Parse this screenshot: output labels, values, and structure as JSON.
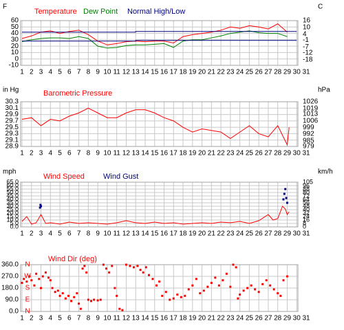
{
  "chart_data": [
    {
      "type": "line",
      "unit_left": "F",
      "unit_right": "C",
      "xlim": [
        1,
        31
      ],
      "xticks": [
        1,
        2,
        3,
        4,
        5,
        6,
        7,
        8,
        9,
        10,
        11,
        12,
        13,
        14,
        15,
        16,
        17,
        18,
        19,
        20,
        21,
        22,
        23,
        24,
        25,
        26,
        27,
        28,
        29,
        30,
        31
      ],
      "ylim": [
        -10,
        60
      ],
      "yticks": [
        60,
        50,
        40,
        30,
        20,
        10,
        0,
        -10
      ],
      "y2lim": [
        -23,
        16
      ],
      "y2ticks": [
        16,
        10,
        4,
        -1,
        -7,
        -12,
        -18
      ],
      "grid": true,
      "series": [
        {
          "name": "Temperature",
          "color": "#ff0000",
          "x": [
            1,
            2,
            3,
            4,
            5,
            6,
            7,
            8,
            9,
            10,
            11,
            12,
            13,
            14,
            15,
            16,
            17,
            18,
            19,
            20,
            21,
            22,
            23,
            24,
            25,
            26,
            27,
            28,
            29
          ],
          "values": [
            32,
            36,
            42,
            44,
            40,
            43,
            45,
            38,
            28,
            22,
            24,
            27,
            28,
            27,
            28,
            28,
            25,
            35,
            38,
            40,
            42,
            45,
            50,
            48,
            52,
            50,
            47,
            55,
            42
          ]
        },
        {
          "name": "Dew Point",
          "color": "#008000",
          "x": [
            1,
            2,
            3,
            4,
            5,
            6,
            7,
            8,
            9,
            10,
            11,
            12,
            13,
            14,
            15,
            16,
            17,
            18,
            19,
            20,
            21,
            22,
            23,
            24,
            25,
            26,
            27,
            28,
            29
          ],
          "values": [
            27,
            30,
            32,
            33,
            33,
            32,
            35,
            32,
            20,
            17,
            18,
            21,
            22,
            22,
            23,
            24,
            18,
            28,
            30,
            30,
            33,
            36,
            40,
            42,
            44,
            41,
            40,
            40,
            35
          ]
        },
        {
          "name": "Normal High/Low",
          "color": "#000080",
          "x": [
            1,
            13,
            30
          ],
          "values": [
            42,
            43,
            44
          ],
          "low": [
            28,
            29,
            30
          ]
        }
      ]
    },
    {
      "type": "line",
      "unit_left": "in Hg",
      "unit_right": "hPa",
      "title": "Barometric Pressure",
      "xlim": [
        1,
        31
      ],
      "xticks": [
        1,
        2,
        3,
        4,
        5,
        6,
        7,
        8,
        9,
        10,
        11,
        12,
        13,
        14,
        15,
        16,
        17,
        18,
        19,
        20,
        21,
        22,
        23,
        24,
        25,
        26,
        27,
        28,
        29,
        30,
        31
      ],
      "ylim": [
        28.9,
        30.3
      ],
      "yticks": [
        30.3,
        30.1,
        29.9,
        29.7,
        29.5,
        29.3,
        29.1,
        28.9
      ],
      "y2lim": [
        979,
        1026
      ],
      "y2ticks": [
        1026,
        1019,
        1013,
        1006,
        999,
        992,
        985,
        979
      ],
      "grid": true,
      "series": [
        {
          "color": "#ff0000",
          "x": [
            1,
            2,
            3,
            4,
            5,
            6,
            7,
            8,
            9,
            10,
            11,
            12,
            13,
            14,
            15,
            16,
            17,
            18,
            19,
            20,
            21,
            22,
            23,
            24,
            25,
            26,
            27,
            28,
            29,
            29.2
          ],
          "values": [
            29.75,
            29.8,
            29.55,
            29.75,
            29.7,
            29.85,
            29.95,
            30.1,
            29.95,
            29.8,
            29.8,
            29.95,
            30.05,
            30.05,
            29.95,
            29.8,
            29.7,
            29.5,
            29.35,
            29.45,
            29.4,
            29.35,
            29.15,
            29.35,
            29.55,
            29.3,
            29.2,
            29.55,
            28.95,
            29.5
          ]
        }
      ]
    },
    {
      "type": "line",
      "unit_left": "mph",
      "unit_right": "km/h",
      "xlim": [
        1,
        31
      ],
      "xticks": [
        1,
        2,
        3,
        4,
        5,
        6,
        7,
        8,
        9,
        10,
        11,
        12,
        13,
        14,
        15,
        16,
        17,
        18,
        19,
        20,
        21,
        22,
        23,
        24,
        25,
        26,
        27,
        28,
        29,
        30,
        31
      ],
      "ylim": [
        0,
        65
      ],
      "yticks": [
        {
          "value": 65,
          "label": "65.0"
        },
        {
          "value": 60,
          "label": "60.0"
        },
        {
          "value": 55,
          "label": "55.0"
        },
        {
          "value": 50,
          "label": "50.0"
        },
        {
          "value": 45,
          "label": "45.0"
        },
        {
          "value": 40,
          "label": "40.0"
        },
        {
          "value": 35,
          "label": "35.0"
        },
        {
          "value": 30,
          "label": "30.0"
        },
        {
          "value": 25,
          "label": "25.0"
        },
        {
          "value": 20,
          "label": "20.0"
        },
        {
          "value": 15,
          "label": "15.0"
        },
        {
          "value": 10,
          "label": "10.0"
        },
        {
          "value": 5,
          "label": "5.0"
        },
        {
          "value": 0,
          "label": "0.0"
        }
      ],
      "y2lim": [
        0,
        105
      ],
      "y2ticks": [
        105,
        96,
        88,
        80,
        72,
        64,
        56,
        48,
        40,
        32,
        24,
        16,
        8,
        0
      ],
      "grid": true,
      "series": [
        {
          "name": "Wind Speed",
          "color": "#ff0000",
          "x": [
            1,
            1.5,
            2,
            2.5,
            3,
            3.5,
            4,
            5,
            6,
            7,
            8,
            9,
            10,
            11,
            12,
            13,
            14,
            15,
            16,
            17,
            18,
            19,
            20,
            21,
            22,
            23,
            24,
            25,
            26,
            27,
            27.5,
            28,
            28.5,
            28.8,
            29,
            29.2
          ],
          "values": [
            8,
            15,
            4,
            6,
            18,
            5,
            6,
            4,
            7,
            5,
            6,
            5,
            4,
            6,
            9,
            6,
            5,
            7,
            5,
            6,
            4,
            5,
            6,
            5,
            7,
            6,
            8,
            5,
            9,
            18,
            10,
            12,
            30,
            26,
            18,
            22
          ]
        },
        {
          "name": "Wind Gust",
          "color": "#000080",
          "mode": "markers",
          "x": [
            2.9,
            2.95,
            3,
            28.6,
            28.7,
            28.8,
            28.9,
            29
          ],
          "values": [
            28,
            32,
            30,
            40,
            48,
            55,
            42,
            35
          ]
        }
      ]
    },
    {
      "type": "scatter",
      "title": "Wind Dir (deg)",
      "xlim": [
        1,
        31
      ],
      "xticks": [
        1,
        2,
        3,
        4,
        5,
        6,
        7,
        8,
        9,
        10,
        11,
        12,
        13,
        14,
        15,
        16,
        17,
        18,
        19,
        20,
        21,
        22,
        23,
        24,
        25,
        26,
        27,
        28,
        29,
        30,
        31
      ],
      "ylim": [
        0,
        360
      ],
      "yticks": [
        {
          "value": 360,
          "label": "360.0"
        },
        {
          "value": 270,
          "label": "270.0"
        },
        {
          "value": 180,
          "label": "180.0"
        },
        {
          "value": 90,
          "label": "90.0"
        },
        {
          "value": 0,
          "label": "0.0"
        }
      ],
      "compass": [
        {
          "value": 360,
          "label": "N"
        },
        {
          "value": 270,
          "label": "W"
        },
        {
          "value": 180,
          "label": "S"
        },
        {
          "value": 90,
          "label": "E"
        },
        {
          "value": 0,
          "label": "N"
        }
      ],
      "grid": true,
      "series": [
        {
          "color": "#ff0000",
          "x": [
            1,
            1.2,
            1.5,
            1.8,
            2,
            2.3,
            2.5,
            2.8,
            3,
            3.2,
            3.5,
            3.8,
            4,
            4.2,
            4.5,
            4.8,
            5,
            5.3,
            5.6,
            5.9,
            6.2,
            6.5,
            6.8,
            7,
            7.2,
            7.4,
            7.6,
            7.8,
            8,
            8.3,
            8.6,
            9,
            9.3,
            9.6,
            9.9,
            10.2,
            10.5,
            10.8,
            11,
            11.3,
            11.6,
            12,
            12.4,
            12.8,
            13.2,
            13.5,
            13.8,
            14.1,
            14.4,
            14.8,
            15.2,
            15.5,
            15.8,
            16.2,
            16.6,
            17,
            17.4,
            17.8,
            18.2,
            18.6,
            19,
            19.4,
            19.8,
            20.2,
            20.6,
            21,
            21.4,
            21.8,
            22.2,
            22.6,
            23,
            23.3,
            23.6,
            23.8,
            24,
            24.4,
            24.8,
            25.2,
            25.6,
            26,
            26.4,
            26.8,
            27.2,
            27.6,
            28,
            28.3,
            28.6,
            29
          ],
          "values": [
            220,
            250,
            230,
            270,
            240,
            200,
            290,
            250,
            180,
            270,
            300,
            260,
            240,
            180,
            150,
            160,
            120,
            140,
            100,
            120,
            80,
            110,
            140,
            60,
            20,
            330,
            350,
            300,
            90,
            80,
            90,
            85,
            90,
            360,
            330,
            300,
            350,
            180,
            120,
            20,
            10,
            360,
            350,
            340,
            350,
            320,
            300,
            340,
            280,
            250,
            200,
            230,
            120,
            150,
            90,
            100,
            130,
            110,
            120,
            170,
            200,
            250,
            140,
            160,
            190,
            220,
            260,
            200,
            240,
            290,
            190,
            360,
            340,
            100,
            130,
            160,
            180,
            200,
            170,
            150,
            210,
            240,
            200,
            170,
            140,
            120,
            240,
            270
          ]
        }
      ]
    }
  ]
}
